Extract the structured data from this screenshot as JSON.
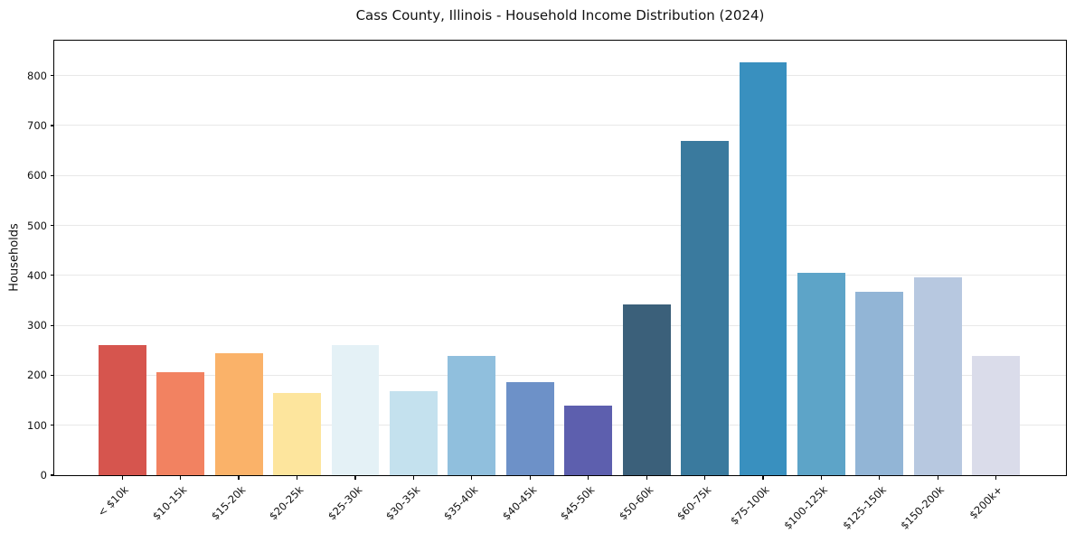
{
  "chart_data": {
    "type": "bar",
    "title": "Cass County, Illinois - Household Income Distribution (2024)",
    "xlabel": "",
    "ylabel": "Households",
    "categories": [
      "< $10k",
      "$10-15k",
      "$15-20k",
      "$20-25k",
      "$25-30k",
      "$30-35k",
      "$35-40k",
      "$40-45k",
      "$45-50k",
      "$50-60k",
      "$60-75k",
      "$75-100k",
      "$100-125k",
      "$125-150k",
      "$150-200k",
      "$200k+"
    ],
    "values": [
      261,
      207,
      244,
      165,
      261,
      169,
      238,
      186,
      140,
      342,
      670,
      827,
      406,
      368,
      397,
      238
    ],
    "bar_colors": [
      "#d6554e",
      "#f28261",
      "#fab269",
      "#fde59d",
      "#e4f1f6",
      "#c4e1ee",
      "#90bfdd",
      "#6d91c8",
      "#5d5fae",
      "#3b607a",
      "#3a7a9e",
      "#3990bf",
      "#5da4c8",
      "#92b5d6",
      "#b7c8e0",
      "#dadcea"
    ],
    "yticks": [
      0,
      100,
      200,
      300,
      400,
      500,
      600,
      700,
      800
    ],
    "ylim": [
      0,
      870
    ],
    "grid": "horizontal-only",
    "legend": "none",
    "x_tick_rotation_deg": 45,
    "background_color": "#ffffff",
    "gridline_color": "#e8e8e8",
    "axis_color": "#000000",
    "text_color": "#111111"
  }
}
